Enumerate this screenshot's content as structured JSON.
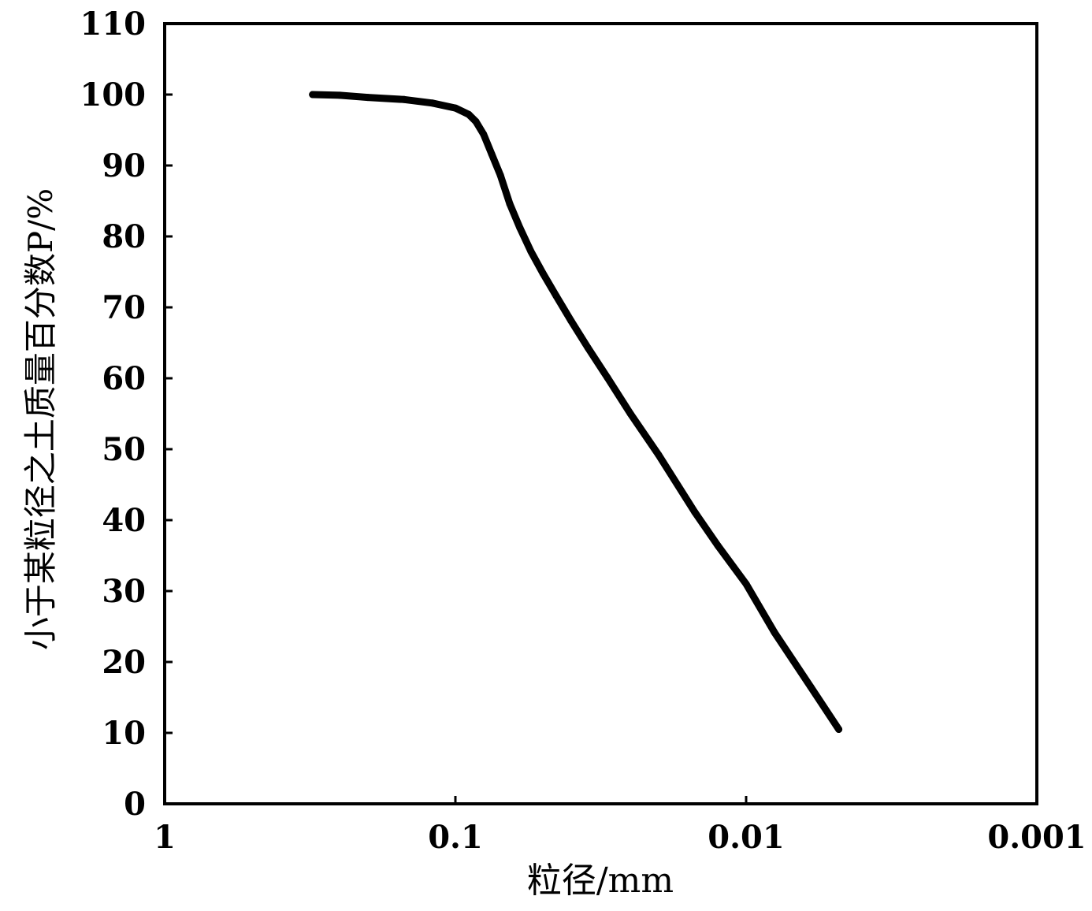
{
  "chart_data": {
    "type": "line",
    "xlabel": "粒径/mm",
    "ylabel": "小于某粒径之土质量百分数P/%",
    "x_scale": "log",
    "x_reversed": true,
    "xlim": [
      1,
      0.001
    ],
    "ylim": [
      0,
      110
    ],
    "x_ticks": [
      "1",
      "0.1",
      "0.01",
      "0.001"
    ],
    "y_ticks": [
      "0",
      "10",
      "20",
      "30",
      "40",
      "50",
      "60",
      "70",
      "80",
      "90",
      "100",
      "110"
    ],
    "grid": false,
    "legend": "none",
    "series": [
      {
        "color": "#000000",
        "x": [
          0.31,
          0.25,
          0.2,
          0.15,
          0.12,
          0.1,
          0.09,
          0.085,
          0.08,
          0.075,
          0.07,
          0.065,
          0.06,
          0.055,
          0.05,
          0.045,
          0.04,
          0.035,
          0.03,
          0.025,
          0.02,
          0.015,
          0.0125,
          0.01,
          0.008,
          0.006,
          0.0048
        ],
        "y": [
          100,
          99.9,
          99.6,
          99.3,
          98.8,
          98.1,
          97.2,
          96.2,
          94.4,
          91.6,
          88.6,
          84.6,
          81.2,
          77.9,
          74.8,
          71.6,
          68.1,
          64.3,
          60.1,
          55.0,
          49.2,
          41.1,
          36.4,
          31.0,
          24.2,
          16.5,
          10.5
        ]
      }
    ]
  }
}
